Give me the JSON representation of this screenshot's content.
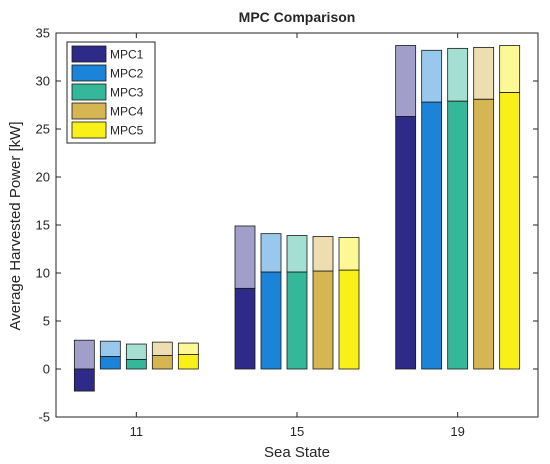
{
  "chart_data": {
    "type": "bar",
    "title": "MPC Comparison",
    "xlabel": "Sea State",
    "ylabel": "Average Harvested Power [kW]",
    "categories": [
      "11",
      "15",
      "19"
    ],
    "ylim": [
      -5,
      35
    ],
    "yticks": [
      "-5",
      "0",
      "5",
      "10",
      "15",
      "20",
      "25",
      "30",
      "35"
    ],
    "grid": false,
    "legend_position": "top-left",
    "stacking_note": "solid segment = lower value, light segment = upper value",
    "series": [
      {
        "name": "MPC1",
        "color": "#2e2a87",
        "solid": [
          -2.3,
          8.4,
          26.3
        ],
        "total": [
          3.0,
          14.9,
          33.7
        ]
      },
      {
        "name": "MPC2",
        "color": "#1c84d8",
        "solid": [
          1.3,
          10.1,
          27.8
        ],
        "total": [
          2.9,
          14.1,
          33.2
        ]
      },
      {
        "name": "MPC3",
        "color": "#35b89a",
        "solid": [
          1.0,
          10.1,
          27.9
        ],
        "total": [
          2.6,
          13.9,
          33.4
        ]
      },
      {
        "name": "MPC4",
        "color": "#d6b553",
        "solid": [
          1.4,
          10.2,
          28.1
        ],
        "total": [
          2.8,
          13.8,
          33.5
        ]
      },
      {
        "name": "MPC5",
        "color": "#f8f016",
        "solid": [
          1.5,
          10.3,
          28.8
        ],
        "total": [
          2.7,
          13.7,
          33.7
        ]
      }
    ]
  }
}
